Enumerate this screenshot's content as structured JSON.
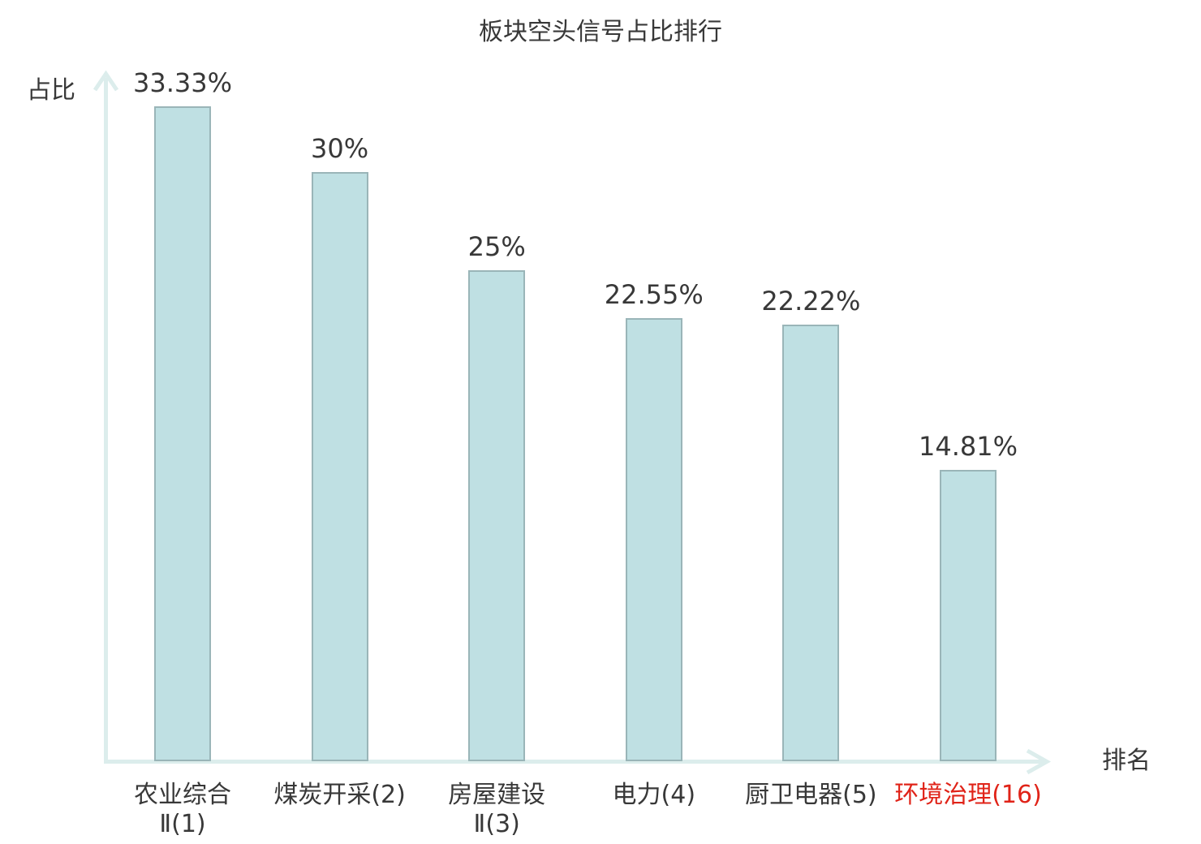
{
  "title": "板块空头信号占比排行",
  "y_axis_label": "占比",
  "x_axis_label": "排名",
  "colors": {
    "bar_fill": "#bfe0e3",
    "bar_border": "#9ab5b8",
    "axis": "#dcedec",
    "text": "#383838",
    "highlight": "#e02318"
  },
  "chart_data": {
    "type": "bar",
    "title": "板块空头信号占比排行",
    "xlabel": "排名",
    "ylabel": "占比",
    "ylim": [
      0,
      34
    ],
    "grid": false,
    "legend": "none",
    "categories": [
      "农业综合Ⅱ(1)",
      "煤炭开采(2)",
      "房屋建设Ⅱ(3)",
      "电力(4)",
      "厨卫电器(5)",
      "环境治理(16)"
    ],
    "category_lines": [
      [
        "农业综合",
        "Ⅱ(1)"
      ],
      [
        "煤炭开采(2)"
      ],
      [
        "房屋建设",
        "Ⅱ(3)"
      ],
      [
        "电力(4)"
      ],
      [
        "厨卫电器(5)"
      ],
      [
        "环境治理(16)"
      ]
    ],
    "values": [
      33.33,
      30,
      25,
      22.55,
      22.22,
      14.81
    ],
    "value_labels": [
      "33.33%",
      "30%",
      "25%",
      "22.55%",
      "22.22%",
      "14.81%"
    ],
    "highlight_index": 5
  }
}
